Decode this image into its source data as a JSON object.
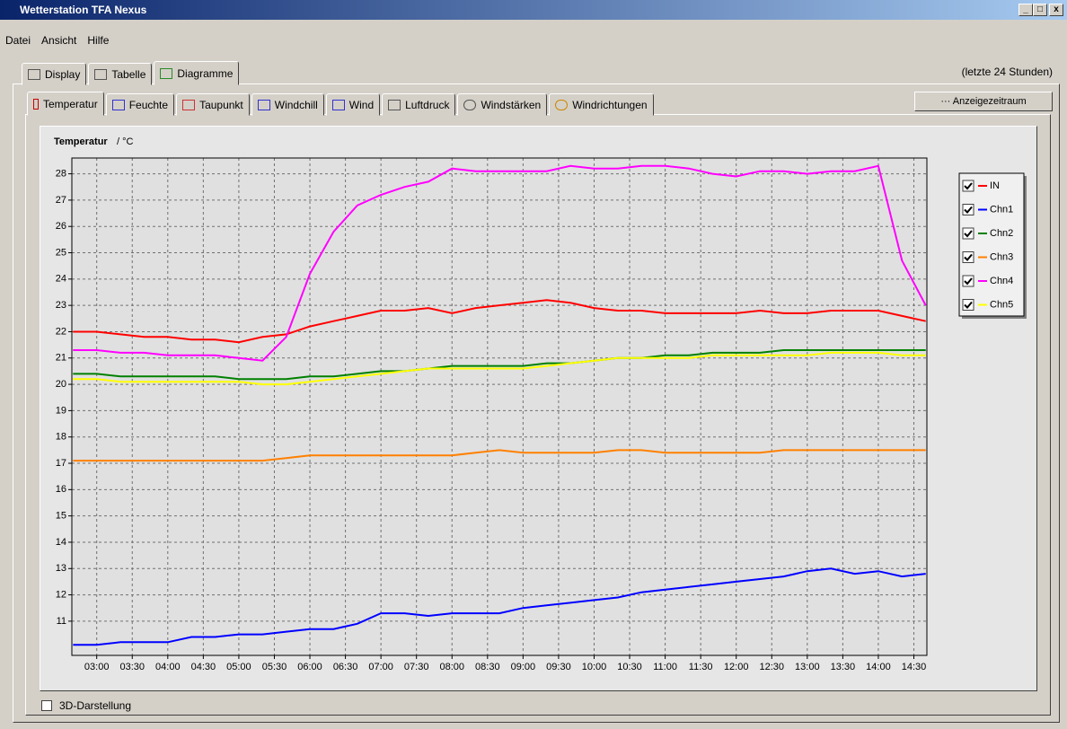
{
  "window": {
    "title": "Wetterstation TFA Nexus"
  },
  "menu": [
    "Datei",
    "Ansicht",
    "Hilfe"
  ],
  "tabs": [
    "Display",
    "Tabelle",
    "Diagramme"
  ],
  "range_note": "(letzte 24 Stunden)",
  "subtabs": [
    "Temperatur",
    "Feuchte",
    "Taupunkt",
    "Windchill",
    "Wind",
    "Luftdruck",
    "Windstärken",
    "Windrichtungen"
  ],
  "button": "··· Anzeigezeitraum",
  "checkbox": "3D-Darstellung",
  "chart_data": {
    "type": "line",
    "title": "Temperatur",
    "unit_label": "/ °C",
    "x": [
      "02:40",
      "03:00",
      "03:20",
      "03:40",
      "04:00",
      "04:20",
      "04:40",
      "05:00",
      "05:20",
      "05:40",
      "06:00",
      "06:20",
      "06:40",
      "07:00",
      "07:20",
      "07:40",
      "08:00",
      "08:20",
      "08:40",
      "09:00",
      "09:20",
      "09:40",
      "10:00",
      "10:20",
      "10:40",
      "11:00",
      "11:20",
      "11:40",
      "12:00",
      "12:20",
      "12:40",
      "13:00",
      "13:20",
      "13:40",
      "14:00",
      "14:20",
      "14:40"
    ],
    "xlim": [
      "02:39",
      "14:41"
    ],
    "xticks": [
      "03:00",
      "03:30",
      "04:00",
      "04:30",
      "05:00",
      "05:30",
      "06:00",
      "06:30",
      "07:00",
      "07:30",
      "08:00",
      "08:30",
      "09:00",
      "09:30",
      "10:00",
      "10:30",
      "11:00",
      "11:30",
      "12:00",
      "12:30",
      "13:00",
      "13:30",
      "14:00",
      "14:30"
    ],
    "ylim": [
      9.7,
      28.6
    ],
    "yticks": [
      11,
      12,
      13,
      14,
      15,
      16,
      17,
      18,
      19,
      20,
      21,
      22,
      23,
      24,
      25,
      26,
      27,
      28
    ],
    "grid": true,
    "legend": "right",
    "series": [
      {
        "name": "IN",
        "color": "#ff0000",
        "values": [
          22.0,
          22.0,
          21.9,
          21.8,
          21.8,
          21.7,
          21.7,
          21.6,
          21.8,
          21.9,
          22.2,
          22.4,
          22.6,
          22.8,
          22.8,
          22.9,
          22.7,
          22.9,
          23.0,
          23.1,
          23.2,
          23.1,
          22.9,
          22.8,
          22.8,
          22.7,
          22.7,
          22.7,
          22.7,
          22.8,
          22.7,
          22.7,
          22.8,
          22.8,
          22.8,
          22.6,
          22.4
        ]
      },
      {
        "name": "Chn1",
        "color": "#0000ff",
        "values": [
          10.1,
          10.1,
          10.2,
          10.2,
          10.2,
          10.4,
          10.4,
          10.5,
          10.5,
          10.6,
          10.7,
          10.7,
          10.9,
          11.3,
          11.3,
          11.2,
          11.3,
          11.3,
          11.3,
          11.5,
          11.6,
          11.7,
          11.8,
          11.9,
          12.1,
          12.2,
          12.3,
          12.4,
          12.5,
          12.6,
          12.7,
          12.9,
          13.0,
          12.8,
          12.9,
          12.7,
          12.8
        ]
      },
      {
        "name": "Chn2",
        "color": "#008000",
        "values": [
          20.4,
          20.4,
          20.3,
          20.3,
          20.3,
          20.3,
          20.3,
          20.2,
          20.2,
          20.2,
          20.3,
          20.3,
          20.4,
          20.5,
          20.5,
          20.6,
          20.7,
          20.7,
          20.7,
          20.7,
          20.8,
          20.8,
          20.9,
          21.0,
          21.0,
          21.1,
          21.1,
          21.2,
          21.2,
          21.2,
          21.3,
          21.3,
          21.3,
          21.3,
          21.3,
          21.3,
          21.3
        ]
      },
      {
        "name": "Chn3",
        "color": "#ff8000",
        "values": [
          17.1,
          17.1,
          17.1,
          17.1,
          17.1,
          17.1,
          17.1,
          17.1,
          17.1,
          17.2,
          17.3,
          17.3,
          17.3,
          17.3,
          17.3,
          17.3,
          17.3,
          17.4,
          17.5,
          17.4,
          17.4,
          17.4,
          17.4,
          17.5,
          17.5,
          17.4,
          17.4,
          17.4,
          17.4,
          17.4,
          17.5,
          17.5,
          17.5,
          17.5,
          17.5,
          17.5,
          17.5
        ]
      },
      {
        "name": "Chn4",
        "color": "#ff00ff",
        "values": [
          21.3,
          21.3,
          21.2,
          21.2,
          21.1,
          21.1,
          21.1,
          21.0,
          20.9,
          21.8,
          24.2,
          25.8,
          26.8,
          27.2,
          27.5,
          27.7,
          28.2,
          28.1,
          28.1,
          28.1,
          28.1,
          28.3,
          28.2,
          28.2,
          28.3,
          28.3,
          28.2,
          28.0,
          27.9,
          28.1,
          28.1,
          28.0,
          28.1,
          28.1,
          28.3,
          24.7,
          23.0
        ]
      },
      {
        "name": "Chn5",
        "color": "#ffff00",
        "values": [
          20.2,
          20.2,
          20.1,
          20.1,
          20.1,
          20.1,
          20.1,
          20.1,
          20.0,
          20.0,
          20.1,
          20.2,
          20.3,
          20.4,
          20.5,
          20.6,
          20.6,
          20.6,
          20.6,
          20.6,
          20.7,
          20.8,
          20.9,
          21.0,
          21.0,
          21.0,
          21.0,
          21.1,
          21.1,
          21.1,
          21.1,
          21.1,
          21.2,
          21.2,
          21.2,
          21.1,
          21.1
        ]
      }
    ]
  }
}
